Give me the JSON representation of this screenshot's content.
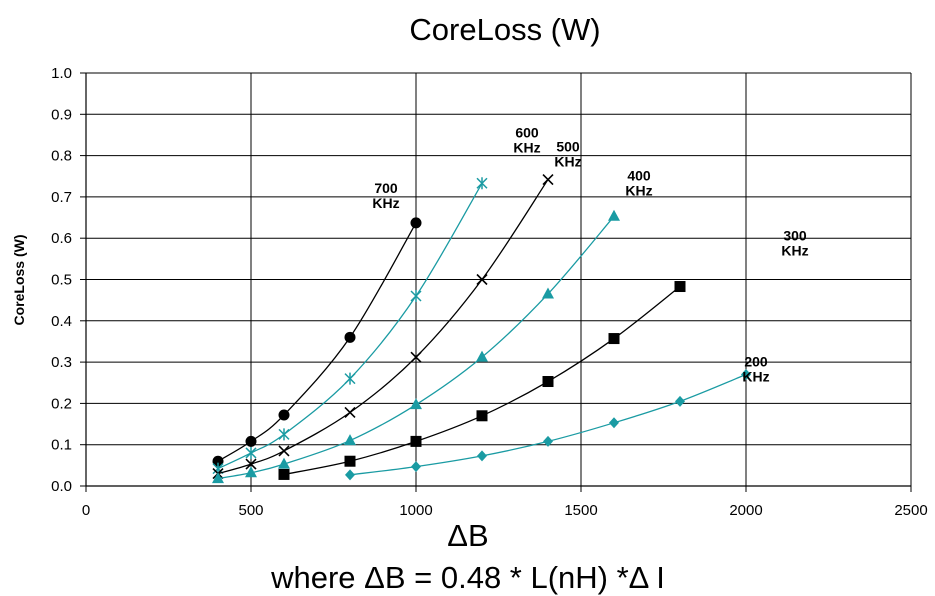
{
  "chart_data": {
    "type": "line",
    "title": "CoreLoss (W)",
    "xlabel": "ΔB",
    "ylabel": "CoreLoss (W)",
    "footnote": "where ΔB = 0.48 * L(nH) *Δ I",
    "xlim": [
      0,
      2500
    ],
    "ylim": [
      0,
      1.0
    ],
    "x_ticks": [
      "0",
      "500",
      "1000",
      "1500",
      "2000",
      "2500"
    ],
    "y_ticks": [
      "0.0",
      "0.1",
      "0.2",
      "0.3",
      "0.4",
      "0.5",
      "0.6",
      "0.7",
      "0.8",
      "0.9",
      "1.0"
    ],
    "grid": true,
    "colors": {
      "black": "#000000",
      "teal": "#1a9ba3"
    },
    "series": [
      {
        "annotation": [
          "700",
          "KHz"
        ],
        "color": "#000000",
        "marker": "circle",
        "x": [
          400,
          500,
          600,
          800,
          1000
        ],
        "y": [
          0.06,
          0.108,
          0.172,
          0.36,
          0.637
        ]
      },
      {
        "annotation": [
          "600",
          "KHz"
        ],
        "color": "#1a9ba3",
        "marker": "asterisk",
        "x": [
          400,
          500,
          600,
          800,
          1000,
          1200
        ],
        "y": [
          0.042,
          0.08,
          0.125,
          0.26,
          0.46,
          0.733
        ]
      },
      {
        "annotation": [
          "500",
          "KHz"
        ],
        "color": "#000000",
        "marker": "x",
        "x": [
          400,
          500,
          600,
          800,
          1000,
          1200,
          1400
        ],
        "y": [
          0.03,
          0.053,
          0.085,
          0.178,
          0.312,
          0.5,
          0.742
        ]
      },
      {
        "annotation": [
          "400",
          "KHz"
        ],
        "color": "#1a9ba3",
        "marker": "triangle",
        "x": [
          400,
          500,
          600,
          800,
          1000,
          1200,
          1400,
          1600
        ],
        "y": [
          0.018,
          0.032,
          0.053,
          0.11,
          0.197,
          0.312,
          0.465,
          0.653
        ]
      },
      {
        "annotation": [
          "300",
          "KHz"
        ],
        "color": "#000000",
        "marker": "square",
        "x": [
          600,
          800,
          1000,
          1200,
          1400,
          1600,
          1800
        ],
        "y": [
          0.028,
          0.06,
          0.108,
          0.17,
          0.253,
          0.357,
          0.483
        ]
      },
      {
        "annotation": [
          "200",
          "KHz"
        ],
        "color": "#1a9ba3",
        "marker": "diamond",
        "x": [
          800,
          1000,
          1200,
          1400,
          1600,
          1800,
          2000
        ],
        "y": [
          0.027,
          0.047,
          0.073,
          0.108,
          0.153,
          0.205,
          0.27
        ]
      }
    ]
  }
}
